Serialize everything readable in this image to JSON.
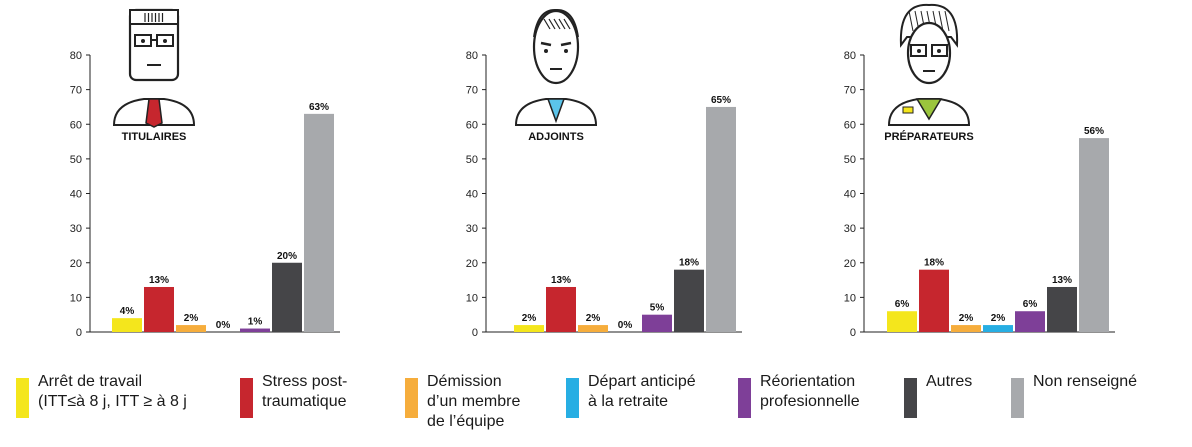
{
  "categories": [
    {
      "key": "arret",
      "label": "Arrêt de travail\n(ITT≤à 8 j, ITT ≥ à 8 j",
      "color": "#f4e61c"
    },
    {
      "key": "stress",
      "label": "Stress post-\ntraumatique",
      "color": "#c6262e"
    },
    {
      "key": "demission",
      "label": "Démission\nd’un membre\nde l’équipe",
      "color": "#f6ad3c"
    },
    {
      "key": "depart",
      "label": "Départ anticipé\nà la retraite",
      "color": "#27aee3"
    },
    {
      "key": "reorientation",
      "label": "Réorientation\nprofesionnelle",
      "color": "#7e3f98"
    },
    {
      "key": "autres",
      "label": "Autres",
      "color": "#454548"
    },
    {
      "key": "nonrens",
      "label": "Non renseigné",
      "color": "#a7a9ac"
    }
  ],
  "chart_data": [
    {
      "type": "bar",
      "title": "TITULAIRES",
      "avatar": "titulaire-icon",
      "y_ticks": [
        "0",
        "10",
        "20",
        "30",
        "40",
        "50",
        "60",
        "70",
        "80"
      ],
      "ylim": [
        0,
        80
      ],
      "values": [
        4,
        13,
        2,
        0,
        1,
        20,
        63
      ],
      "value_labels": [
        "4%",
        "13%",
        "2%",
        "0%",
        "1%",
        "20%",
        "63%"
      ]
    },
    {
      "type": "bar",
      "title": "ADJOINTS",
      "avatar": "adjoint-icon",
      "y_ticks": [
        "0",
        "10",
        "20",
        "30",
        "40",
        "50",
        "60",
        "70",
        "80"
      ],
      "ylim": [
        0,
        80
      ],
      "values": [
        2,
        13,
        2,
        0,
        5,
        18,
        65
      ],
      "value_labels": [
        "2%",
        "13%",
        "2%",
        "0%",
        "5%",
        "18%",
        "65%"
      ]
    },
    {
      "type": "bar",
      "title": "PRÉPARATEURS",
      "avatar": "preparateur-icon",
      "y_ticks": [
        "0",
        "10",
        "20",
        "30",
        "40",
        "50",
        "60",
        "70",
        "80"
      ],
      "ylim": [
        0,
        80
      ],
      "values": [
        6,
        18,
        2,
        2,
        6,
        13,
        56
      ],
      "value_labels": [
        "6%",
        "18%",
        "2%",
        "2%",
        "6%",
        "13%",
        "56%"
      ]
    }
  ]
}
